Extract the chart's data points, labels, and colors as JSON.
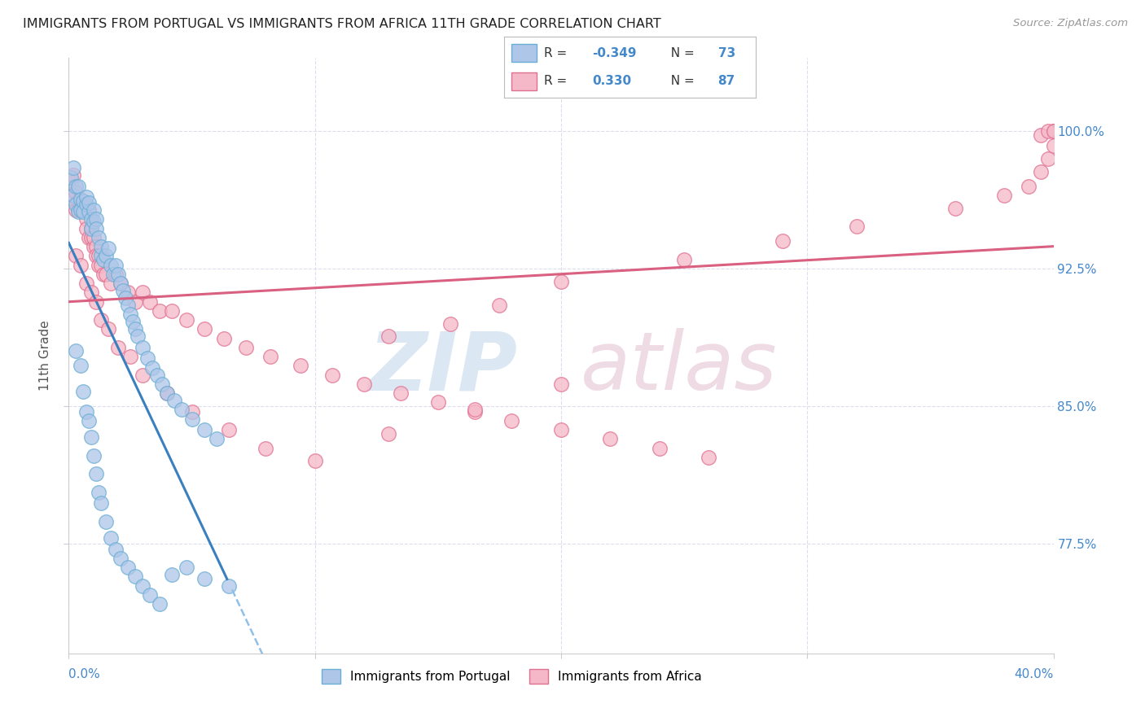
{
  "title": "IMMIGRANTS FROM PORTUGAL VS IMMIGRANTS FROM AFRICA 11TH GRADE CORRELATION CHART",
  "source": "Source: ZipAtlas.com",
  "ylabel": "11th Grade",
  "ytick_labels": [
    "100.0%",
    "92.5%",
    "85.0%",
    "77.5%"
  ],
  "ytick_values": [
    1.0,
    0.925,
    0.85,
    0.775
  ],
  "xlim": [
    0.0,
    0.4
  ],
  "ylim": [
    0.715,
    1.04
  ],
  "portugal_color": "#aec6e8",
  "africa_color": "#f5b8c8",
  "portugal_edge": "#6aaed6",
  "africa_edge": "#e07090",
  "trend_portugal_solid_color": "#3a7fbf",
  "trend_africa_color": "#d96080",
  "trend_dashed_color": "#90c0e8",
  "legend_R_portugal": "-0.349",
  "legend_N_portugal": "73",
  "legend_R_africa": "0.330",
  "legend_N_africa": "87",
  "blue_text_color": "#4488cc",
  "watermark_zip_color": "#ccdff0",
  "watermark_atlas_color": "#e8ccd8",
  "grid_color": "#ddddee",
  "portugal_x": [
    0.001,
    0.002,
    0.002,
    0.003,
    0.003,
    0.004,
    0.004,
    0.005,
    0.005,
    0.006,
    0.006,
    0.007,
    0.007,
    0.008,
    0.008,
    0.009,
    0.009,
    0.01,
    0.01,
    0.011,
    0.011,
    0.012,
    0.013,
    0.013,
    0.014,
    0.015,
    0.016,
    0.017,
    0.018,
    0.019,
    0.02,
    0.021,
    0.022,
    0.023,
    0.024,
    0.025,
    0.026,
    0.027,
    0.028,
    0.03,
    0.032,
    0.034,
    0.036,
    0.038,
    0.04,
    0.043,
    0.046,
    0.05,
    0.055,
    0.06,
    0.003,
    0.005,
    0.006,
    0.007,
    0.008,
    0.009,
    0.01,
    0.011,
    0.012,
    0.013,
    0.015,
    0.017,
    0.019,
    0.021,
    0.024,
    0.027,
    0.03,
    0.033,
    0.037,
    0.042,
    0.048,
    0.055,
    0.065
  ],
  "portugal_y": [
    0.975,
    0.98,
    0.965,
    0.97,
    0.96,
    0.97,
    0.956,
    0.963,
    0.957,
    0.962,
    0.956,
    0.96,
    0.964,
    0.956,
    0.961,
    0.952,
    0.947,
    0.957,
    0.951,
    0.952,
    0.947,
    0.942,
    0.932,
    0.937,
    0.93,
    0.932,
    0.936,
    0.927,
    0.922,
    0.927,
    0.922,
    0.917,
    0.913,
    0.909,
    0.905,
    0.9,
    0.896,
    0.892,
    0.888,
    0.882,
    0.876,
    0.871,
    0.867,
    0.862,
    0.857,
    0.853,
    0.848,
    0.843,
    0.837,
    0.832,
    0.88,
    0.872,
    0.858,
    0.847,
    0.842,
    0.833,
    0.823,
    0.813,
    0.803,
    0.797,
    0.787,
    0.778,
    0.772,
    0.767,
    0.762,
    0.757,
    0.752,
    0.747,
    0.742,
    0.758,
    0.762,
    0.756,
    0.752
  ],
  "africa_x": [
    0.001,
    0.002,
    0.002,
    0.003,
    0.003,
    0.004,
    0.004,
    0.005,
    0.005,
    0.006,
    0.006,
    0.007,
    0.007,
    0.008,
    0.008,
    0.009,
    0.009,
    0.01,
    0.01,
    0.011,
    0.011,
    0.012,
    0.012,
    0.013,
    0.014,
    0.015,
    0.017,
    0.019,
    0.021,
    0.024,
    0.027,
    0.03,
    0.033,
    0.037,
    0.042,
    0.048,
    0.055,
    0.063,
    0.072,
    0.082,
    0.094,
    0.107,
    0.12,
    0.135,
    0.15,
    0.165,
    0.18,
    0.2,
    0.22,
    0.24,
    0.26,
    0.003,
    0.005,
    0.007,
    0.009,
    0.011,
    0.013,
    0.016,
    0.02,
    0.025,
    0.03,
    0.04,
    0.05,
    0.065,
    0.08,
    0.1,
    0.13,
    0.165,
    0.2,
    0.13,
    0.155,
    0.175,
    0.2,
    0.25,
    0.29,
    0.32,
    0.36,
    0.38,
    0.39,
    0.395,
    0.398,
    0.4,
    0.395,
    0.4,
    0.4,
    0.398,
    0.4
  ],
  "africa_y": [
    0.972,
    0.976,
    0.963,
    0.967,
    0.957,
    0.962,
    0.957,
    0.958,
    0.962,
    0.957,
    0.962,
    0.952,
    0.947,
    0.957,
    0.942,
    0.947,
    0.942,
    0.937,
    0.942,
    0.937,
    0.932,
    0.932,
    0.927,
    0.927,
    0.922,
    0.922,
    0.917,
    0.922,
    0.917,
    0.912,
    0.907,
    0.912,
    0.907,
    0.902,
    0.902,
    0.897,
    0.892,
    0.887,
    0.882,
    0.877,
    0.872,
    0.867,
    0.862,
    0.857,
    0.852,
    0.847,
    0.842,
    0.837,
    0.832,
    0.827,
    0.822,
    0.932,
    0.927,
    0.917,
    0.912,
    0.907,
    0.897,
    0.892,
    0.882,
    0.877,
    0.867,
    0.857,
    0.847,
    0.837,
    0.827,
    0.82,
    0.835,
    0.848,
    0.862,
    0.888,
    0.895,
    0.905,
    0.918,
    0.93,
    0.94,
    0.948,
    0.958,
    0.965,
    0.97,
    0.978,
    0.985,
    0.992,
    0.998,
    1.0,
    1.0,
    1.0,
    1.0
  ]
}
